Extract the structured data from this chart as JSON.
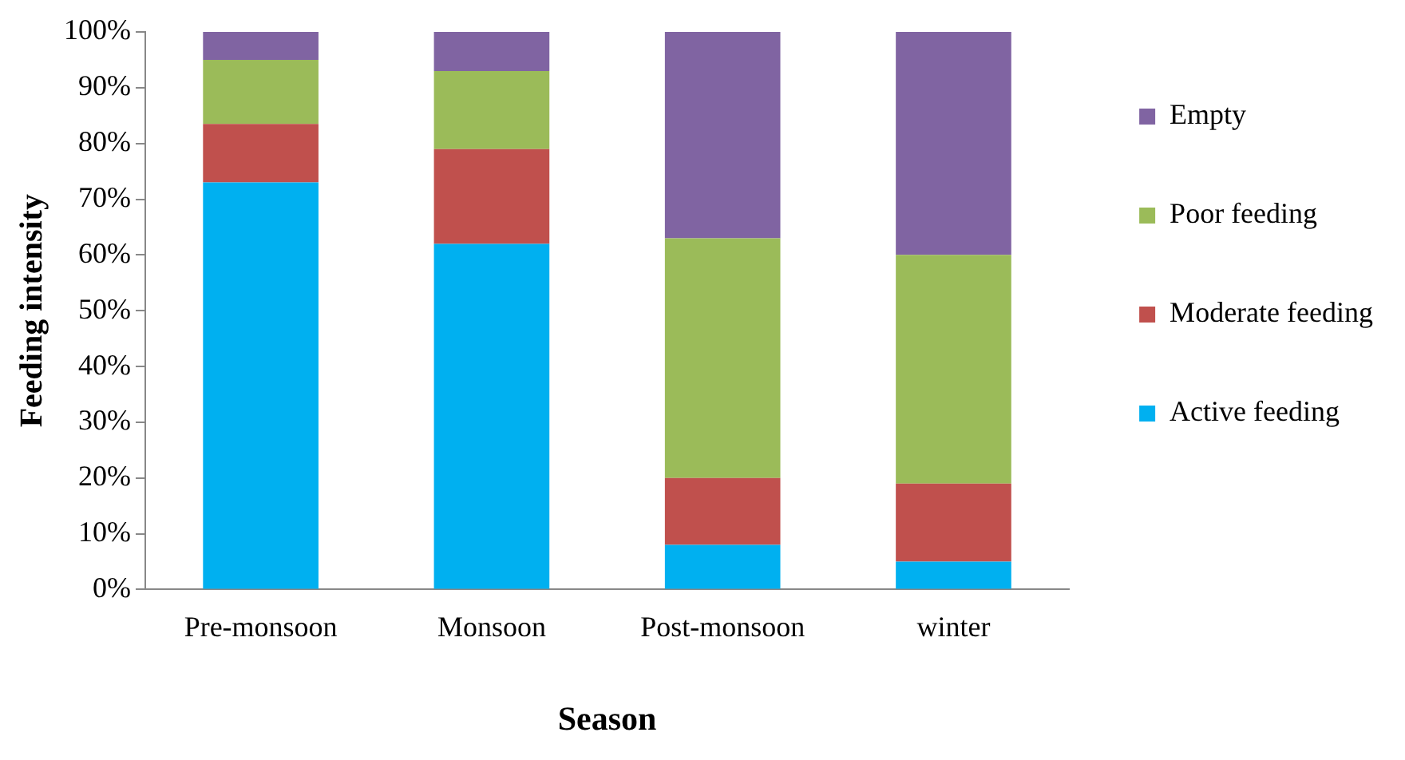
{
  "chart_data": {
    "type": "bar",
    "stacked": true,
    "xlabel": "Season",
    "ylabel": "Feeding intensity",
    "categories": [
      "Pre-monsoon",
      "Monsoon",
      "Post-monsoon",
      "winter"
    ],
    "series": [
      {
        "name": "Active feeding",
        "color": "#00b0f0",
        "values": [
          73,
          62,
          8,
          5
        ]
      },
      {
        "name": "Moderate feeding",
        "color": "#c0504d",
        "values": [
          10.5,
          17,
          12,
          14
        ]
      },
      {
        "name": "Poor feeding",
        "color": "#9bbb59",
        "values": [
          11.5,
          14,
          43,
          41
        ]
      },
      {
        "name": "Empty",
        "color": "#8064a2",
        "values": [
          5,
          7,
          37,
          40
        ]
      }
    ],
    "ylim": [
      0,
      100
    ],
    "yticks": [
      {
        "value": 0,
        "label": "0%"
      },
      {
        "value": 10,
        "label": "10%"
      },
      {
        "value": 20,
        "label": "20%"
      },
      {
        "value": 30,
        "label": "30%"
      },
      {
        "value": 40,
        "label": "40%"
      },
      {
        "value": 50,
        "label": "50%"
      },
      {
        "value": 60,
        "label": "60%"
      },
      {
        "value": 70,
        "label": "70%"
      },
      {
        "value": 80,
        "label": "80%"
      },
      {
        "value": 90,
        "label": "90%"
      },
      {
        "value": 100,
        "label": "100%"
      }
    ],
    "grid": false,
    "legend": "right"
  }
}
